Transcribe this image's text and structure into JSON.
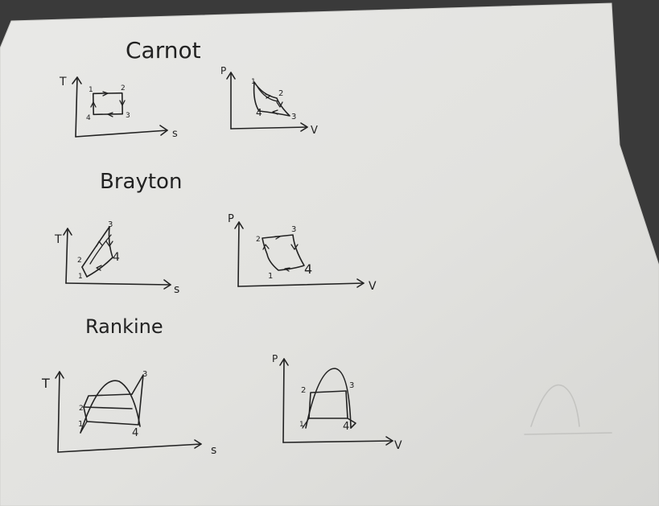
{
  "sections": [
    {
      "title": "Carnot",
      "diagrams": [
        {
          "y_axis": "T",
          "x_axis": "s",
          "points": [
            "1",
            "2",
            "3",
            "4"
          ]
        },
        {
          "y_axis": "P",
          "x_axis": "V",
          "points": [
            "1",
            "2",
            "3",
            "4"
          ]
        }
      ]
    },
    {
      "title": "Brayton",
      "diagrams": [
        {
          "y_axis": "T",
          "x_axis": "s",
          "points": [
            "1",
            "2",
            "3",
            "4"
          ]
        },
        {
          "y_axis": "P",
          "x_axis": "V",
          "points": [
            "1",
            "2",
            "3",
            "4"
          ]
        }
      ]
    },
    {
      "title": "Rankine",
      "diagrams": [
        {
          "y_axis": "T",
          "x_axis": "s",
          "points": [
            "1",
            "2",
            "3",
            "4"
          ]
        },
        {
          "y_axis": "P",
          "x_axis": "V",
          "points": [
            "1",
            "2",
            "3",
            "4"
          ]
        }
      ]
    }
  ],
  "colors": {
    "paper": "#e4e4e2",
    "paper_edge": "#d2d2cf",
    "ink": "#222222",
    "background": "#3a3a3a"
  }
}
